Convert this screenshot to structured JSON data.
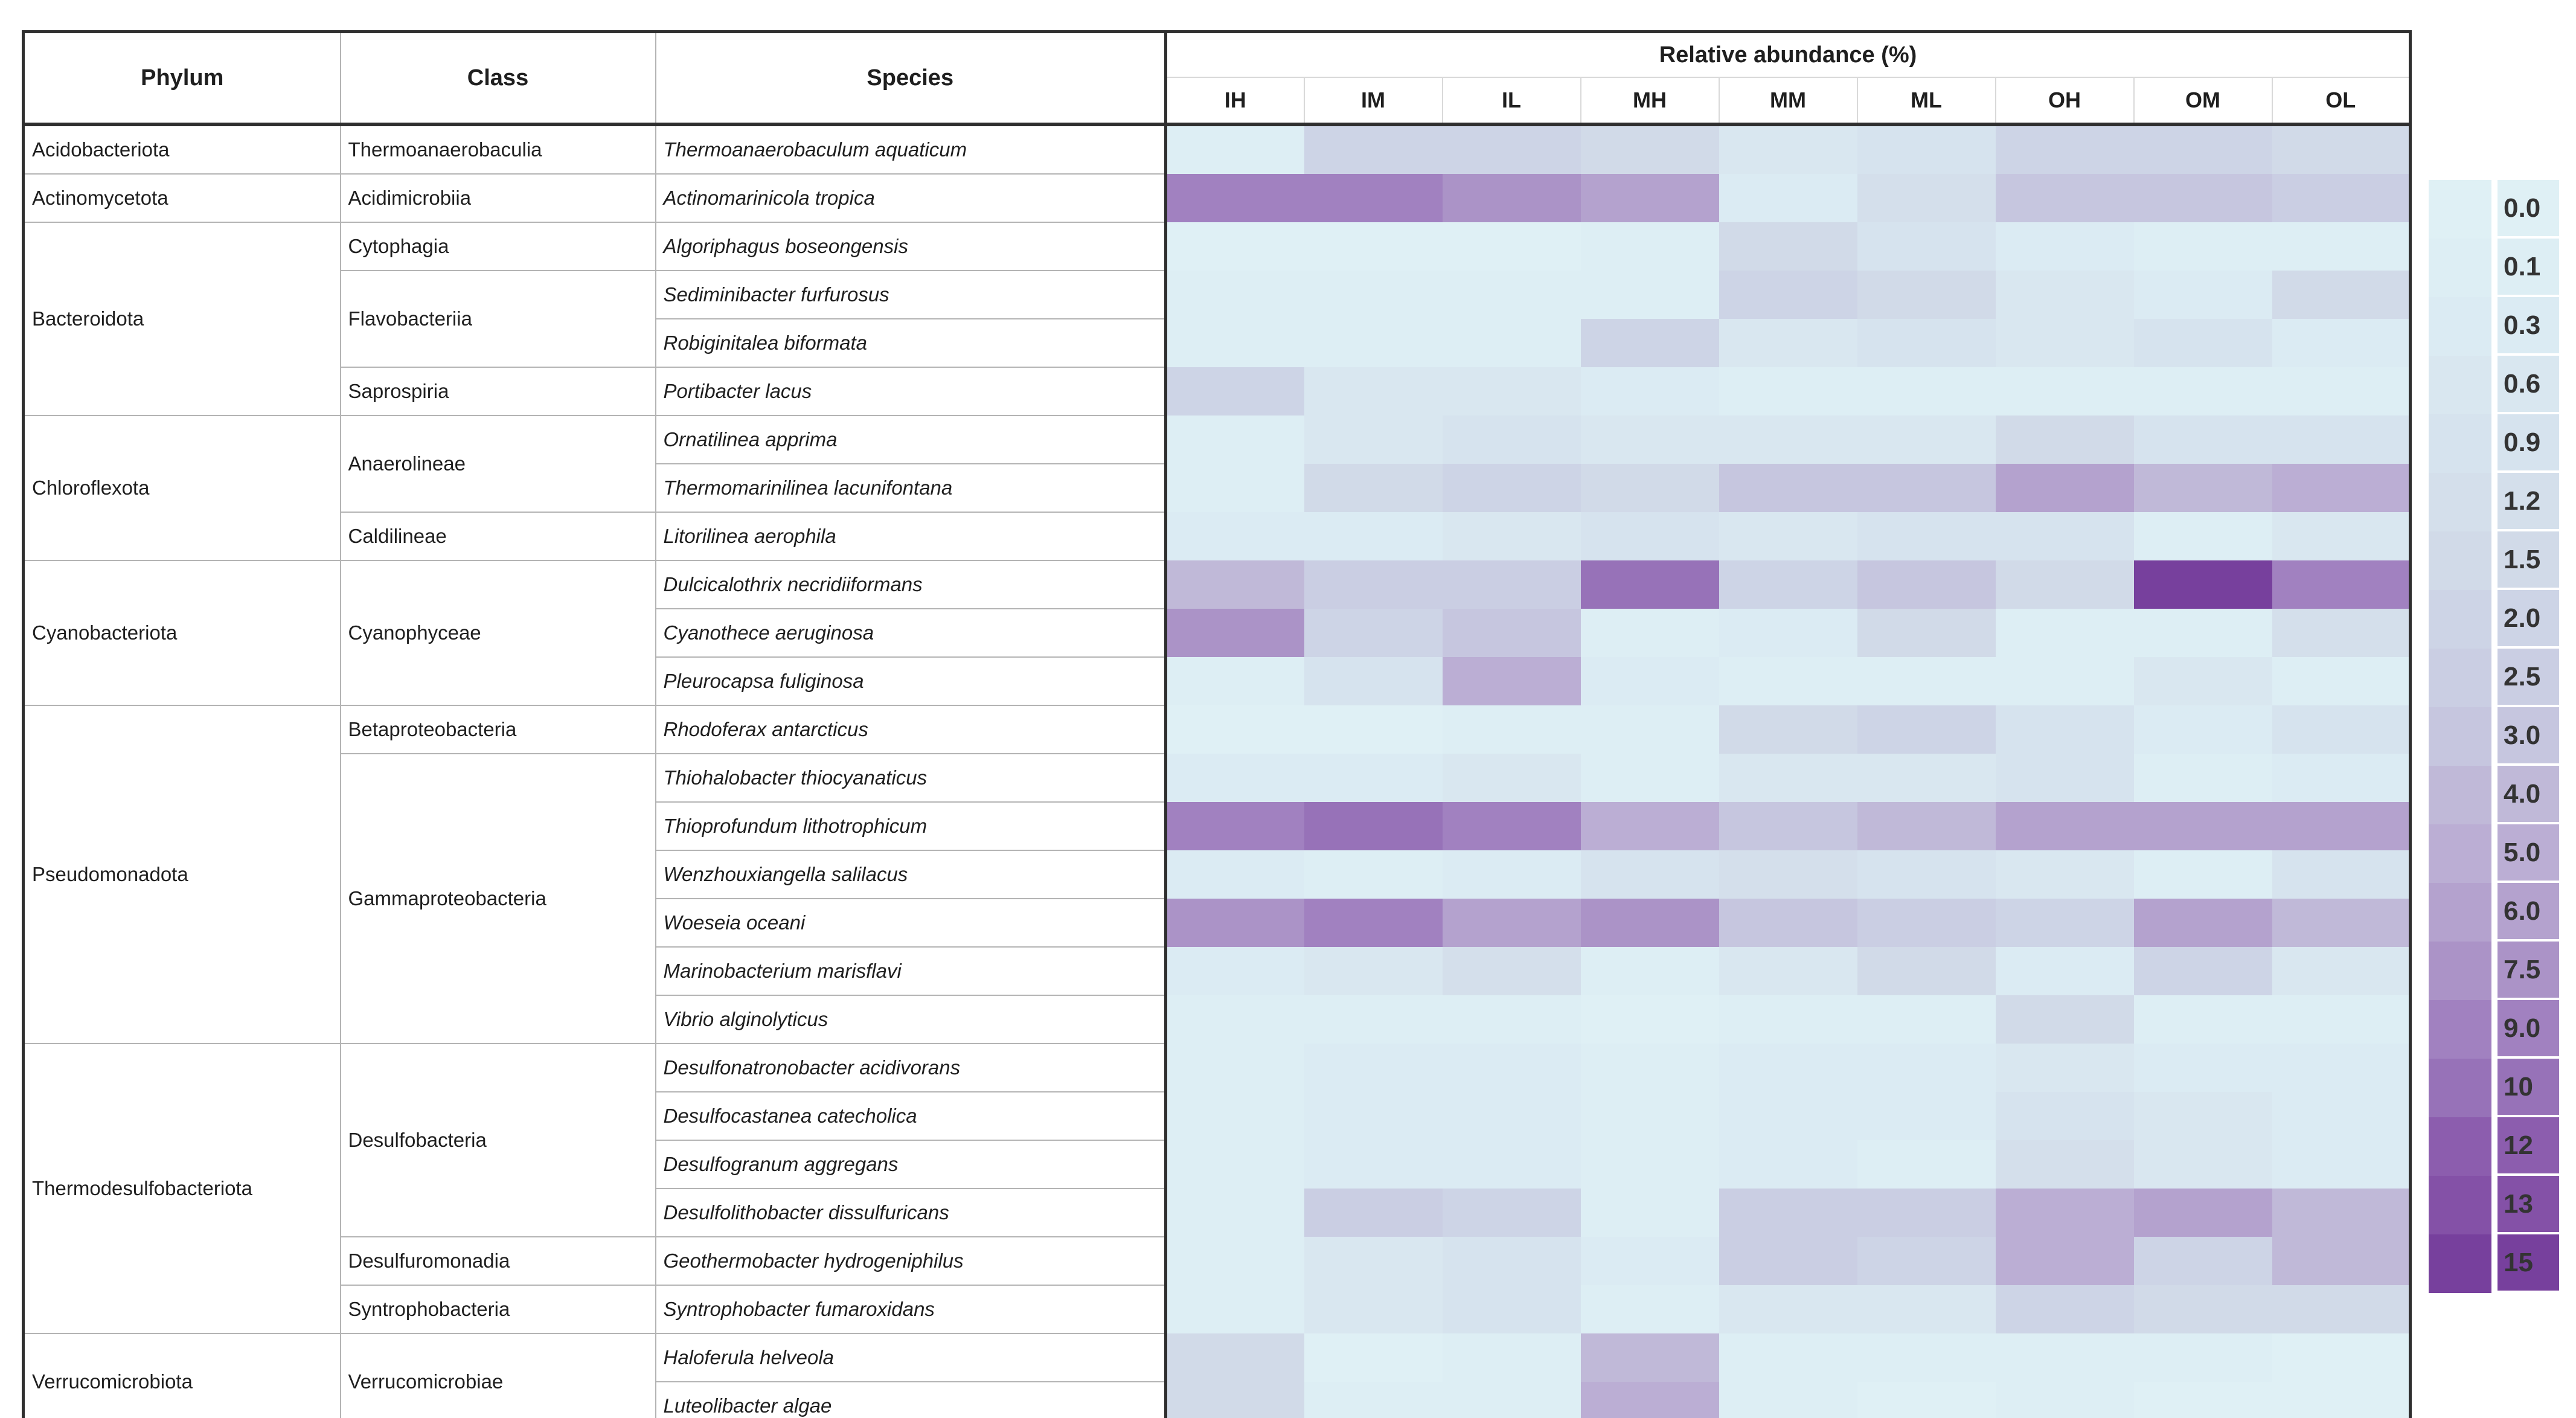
{
  "table": {
    "headers": {
      "phylum": "Phylum",
      "class": "Class",
      "species": "Species",
      "abundance": "Relative abundance (%)"
    }
  },
  "legend": {
    "entries": [
      "0.0",
      "0.1",
      "0.3",
      "0.6",
      "0.9",
      "1.2",
      "1.5",
      "2.0",
      "2.5",
      "3.0",
      "4.0",
      "5.0",
      "6.0",
      "7.5",
      "9.0",
      "10",
      "12",
      "13",
      "15"
    ],
    "scale": {
      "0.0": "#dff0f5",
      "0.1": "#ddeef4",
      "0.3": "#dbebf3",
      "0.6": "#d9e7f0",
      "0.9": "#d6e3ee",
      "1.2": "#d4dfeb",
      "1.5": "#d1dae8",
      "2.0": "#cdd4e6",
      "2.5": "#cacee3",
      "3.0": "#c6c6df",
      "4.0": "#c0b9d8",
      "5.0": "#bbaed4",
      "6.0": "#b4a2ce",
      "7.5": "#ab93c7",
      "9.0": "#a181c0",
      "10": "#9772b8",
      "12": "#8c5dae",
      "13": "#8451a7",
      "15": "#77409d"
    }
  },
  "chart_data": {
    "type": "heatmap",
    "title": "Relative abundance (%)",
    "columns": [
      "IH",
      "IM",
      "IL",
      "MH",
      "MM",
      "ML",
      "OH",
      "OM",
      "OL"
    ],
    "value_scale_percent": [
      0.0,
      0.1,
      0.3,
      0.6,
      0.9,
      1.2,
      1.5,
      2.0,
      2.5,
      3.0,
      4.0,
      5.0,
      6.0,
      7.5,
      9.0,
      10,
      12,
      13,
      15
    ],
    "rows": [
      {
        "phylum": {
          "label": "Acidobacteriota",
          "span": 1
        },
        "class": {
          "label": "Thermoanaerobaculia",
          "span": 1
        },
        "species": "Thermoanaerobaculum aquaticum",
        "values": [
          "0.1",
          "2.0",
          "2.0",
          "1.5",
          "0.6",
          "0.9",
          "2.0",
          "2.0",
          "1.5"
        ]
      },
      {
        "phylum": {
          "label": "Actinomycetota",
          "span": 1
        },
        "class": {
          "label": "Acidimicrobiia",
          "span": 1
        },
        "species": "Actinomarinicola tropica",
        "values": [
          "9.0",
          "9.0",
          "7.5",
          "6.0",
          "0.3",
          "1.2",
          "3.0",
          "3.0",
          "2.5"
        ]
      },
      {
        "phylum": {
          "label": "Bacteroidota",
          "span": 4
        },
        "class": {
          "label": "Cytophagia",
          "span": 1
        },
        "species": "Algoriphagus boseongensis",
        "values": [
          "0.0",
          "0.0",
          "0.0",
          "0.1",
          "1.5",
          "0.9",
          "0.3",
          "0.1",
          "0.1"
        ]
      },
      {
        "class": {
          "label": "Flavobacteriia",
          "span": 2
        },
        "species": "Sediminibacter furfurosus",
        "values": [
          "0.1",
          "0.1",
          "0.1",
          "0.1",
          "2.0",
          "1.5",
          "0.6",
          "0.3",
          "1.5"
        ]
      },
      {
        "species": "Robiginitalea biformata",
        "values": [
          "0.1",
          "0.1",
          "0.1",
          "2.0",
          "0.6",
          "0.9",
          "0.6",
          "0.9",
          "0.3"
        ]
      },
      {
        "class": {
          "label": "Saprospiria",
          "span": 1
        },
        "species": "Portibacter lacus",
        "values": [
          "2.0",
          "0.6",
          "0.6",
          "0.3",
          "0.1",
          "0.1",
          "0.1",
          "0.1",
          "0.1"
        ]
      },
      {
        "phylum": {
          "label": "Chloroflexota",
          "span": 3
        },
        "class": {
          "label": "Anaerolineae",
          "span": 2
        },
        "species": "Ornatilinea apprima",
        "values": [
          "0.1",
          "0.6",
          "0.9",
          "0.6",
          "0.6",
          "0.6",
          "1.5",
          "0.9",
          "0.9"
        ]
      },
      {
        "species": "Thermomarinilinea lacunifontana",
        "values": [
          "0.1",
          "1.5",
          "2.0",
          "1.5",
          "3.0",
          "3.0",
          "6.0",
          "4.0",
          "5.0"
        ]
      },
      {
        "class": {
          "label": "Caldilineae",
          "span": 1
        },
        "species": "Litorilinea aerophila",
        "values": [
          "0.3",
          "0.3",
          "0.6",
          "0.9",
          "0.6",
          "0.9",
          "0.9",
          "0.1",
          "0.6"
        ]
      },
      {
        "phylum": {
          "label": "Cyanobacteriota",
          "span": 3
        },
        "class": {
          "label": "Cyanophyceae",
          "span": 3
        },
        "species": "Dulcicalothrix necridiiformans",
        "values": [
          "4.0",
          "2.5",
          "2.5",
          "10",
          "2.0",
          "3.0",
          "1.5",
          "15",
          "9.0"
        ]
      },
      {
        "species": "Cyanothece aeruginosa",
        "values": [
          "7.5",
          "2.0",
          "3.0",
          "0.1",
          "0.3",
          "1.5",
          "0.1",
          "0.1",
          "1.2"
        ]
      },
      {
        "species": "Pleurocapsa fuliginosa",
        "values": [
          "0.1",
          "0.9",
          "5.0",
          "0.3",
          "0.1",
          "0.1",
          "0.1",
          "0.6",
          "0.1"
        ]
      },
      {
        "phylum": {
          "label": "Pseudomonadota",
          "span": 7
        },
        "class": {
          "label": "Betaproteobacteria",
          "span": 1
        },
        "species": "Rhodoferax antarcticus",
        "values": [
          "0.0",
          "0.0",
          "0.1",
          "0.1",
          "1.5",
          "2.0",
          "0.9",
          "0.3",
          "0.9"
        ]
      },
      {
        "class": {
          "label": "Gammaproteobacteria",
          "span": 6
        },
        "species": "Thiohalobacter thiocyanaticus",
        "values": [
          "0.3",
          "0.3",
          "0.6",
          "0.1",
          "0.6",
          "0.6",
          "0.9",
          "0.1",
          "0.3"
        ]
      },
      {
        "species": "Thioprofundum lithotrophicum",
        "values": [
          "9.0",
          "10",
          "9.0",
          "5.0",
          "3.0",
          "4.0",
          "6.0",
          "6.0",
          "6.0"
        ]
      },
      {
        "species": "Wenzhouxiangella salilacus",
        "values": [
          "0.3",
          "0.1",
          "0.3",
          "0.9",
          "1.2",
          "0.9",
          "0.6",
          "0.1",
          "0.9"
        ]
      },
      {
        "species": "Woeseia oceani",
        "values": [
          "7.5",
          "9.0",
          "6.0",
          "7.5",
          "3.0",
          "2.5",
          "2.0",
          "6.0",
          "4.0"
        ]
      },
      {
        "species": "Marinobacterium marisflavi",
        "values": [
          "0.3",
          "0.6",
          "1.2",
          "0.1",
          "0.6",
          "1.5",
          "0.3",
          "2.0",
          "0.6"
        ]
      },
      {
        "species": "Vibrio alginolyticus",
        "values": [
          "0.1",
          "0.1",
          "0.1",
          "0.0",
          "0.1",
          "0.1",
          "1.5",
          "0.1",
          "0.1"
        ]
      },
      {
        "phylum": {
          "label": "Thermodesulfobacteriota",
          "span": 6
        },
        "class": {
          "label": "Desulfobacteria",
          "span": 4
        },
        "species": "Desulfonatronobacter acidivorans",
        "values": [
          "0.1",
          "0.3",
          "0.3",
          "0.1",
          "0.3",
          "0.3",
          "0.6",
          "0.3",
          "0.3"
        ]
      },
      {
        "species": "Desulfocastanea catecholica",
        "values": [
          "0.1",
          "0.3",
          "0.3",
          "0.1",
          "0.3",
          "0.3",
          "0.9",
          "0.6",
          "0.3"
        ]
      },
      {
        "species": "Desulfogranum aggregans",
        "values": [
          "0.1",
          "0.3",
          "0.3",
          "0.1",
          "0.3",
          "0.1",
          "1.2",
          "0.6",
          "0.3"
        ]
      },
      {
        "species": "Desulfolithobacter dissulfuricans",
        "values": [
          "0.1",
          "2.5",
          "2.0",
          "0.1",
          "2.5",
          "2.5",
          "5.0",
          "6.0",
          "4.0"
        ]
      },
      {
        "class": {
          "label": "Desulfuromonadia",
          "span": 1
        },
        "species": "Geothermobacter hydrogeniphilus",
        "values": [
          "0.1",
          "0.6",
          "0.9",
          "0.3",
          "2.5",
          "2.0",
          "5.0",
          "2.0",
          "4.0"
        ]
      },
      {
        "class": {
          "label": "Syntrophobacteria",
          "span": 1
        },
        "species": "Syntrophobacter fumaroxidans",
        "values": [
          "0.1",
          "0.6",
          "0.9",
          "0.1",
          "0.6",
          "0.6",
          "2.0",
          "1.5",
          "1.5"
        ]
      },
      {
        "phylum": {
          "label": "Verrucomicrobiota",
          "span": 2
        },
        "class": {
          "label": "Verrucomicrobiae",
          "span": 2
        },
        "species": "Haloferula helveola",
        "values": [
          "1.5",
          "0.0",
          "0.1",
          "4.0",
          "0.1",
          "0.1",
          "0.1",
          "0.1",
          "0.0"
        ]
      },
      {
        "species": "Luteolibacter algae",
        "values": [
          "1.5",
          "0.1",
          "0.1",
          "5.0",
          "0.1",
          "0.0",
          "0.1",
          "0.0",
          "0.0"
        ]
      }
    ]
  }
}
